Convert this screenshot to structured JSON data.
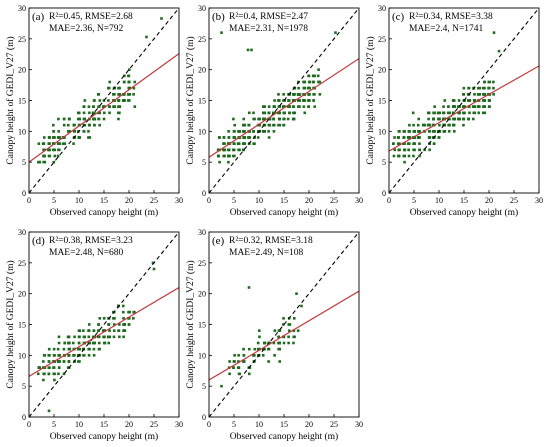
{
  "chart_data": [
    {
      "type": "scatter",
      "panel_label": "(a)",
      "stats_line1": "R²=0.45,  RMSE=2.68",
      "stats_line2": "MAE=2.36,  N=792",
      "xlabel": "Observed canopy height (m)",
      "ylabel": "Canopy height of GEDI_V27 (m)",
      "xlim": [
        0,
        30
      ],
      "ylim": [
        0,
        30
      ],
      "xticks": [
        0,
        5,
        10,
        15,
        20,
        25,
        30
      ],
      "yticks": [
        0,
        5,
        10,
        15,
        20,
        25,
        30
      ],
      "fit_line": [
        [
          0,
          5.0
        ],
        [
          30,
          22.6
        ]
      ],
      "identity_line": [
        [
          0,
          0
        ],
        [
          30,
          30
        ]
      ],
      "cloud": {
        "x_min": 2,
        "x_max": 21,
        "count": 250,
        "slope": 0.59,
        "intercept": 5.0,
        "spread": 2.7
      },
      "outliers": [
        [
          26.5,
          28.3
        ],
        [
          23.5,
          25.3
        ]
      ]
    },
    {
      "type": "scatter",
      "panel_label": "(b)",
      "stats_line1": "R²=0.4,  RMSE=2.47",
      "stats_line2": "MAE=2.31,  N=1978",
      "xlabel": "Observed canopy height (m)",
      "ylabel": "Canopy height of GEDI_V27 (m)",
      "xlim": [
        0,
        30
      ],
      "ylim": [
        0,
        30
      ],
      "xticks": [
        0,
        5,
        10,
        15,
        20,
        25,
        30
      ],
      "yticks": [
        0,
        5,
        10,
        15,
        20,
        25,
        30
      ],
      "fit_line": [
        [
          0,
          5.8
        ],
        [
          30,
          21.8
        ]
      ],
      "identity_line": [
        [
          0,
          0
        ],
        [
          30,
          30
        ]
      ],
      "cloud": {
        "x_min": 2,
        "x_max": 22,
        "count": 380,
        "slope": 0.53,
        "intercept": 5.8,
        "spread": 2.6
      },
      "outliers": [
        [
          7.8,
          23.2
        ],
        [
          8.5,
          23.2
        ],
        [
          25.3,
          26.0
        ],
        [
          2.5,
          26.0
        ]
      ]
    },
    {
      "type": "scatter",
      "panel_label": "(c)",
      "stats_line1": "R²=0.34,  RMSE=3.38",
      "stats_line2": "MAE=2.4,  N=1741",
      "xlabel": "Observed canopy height (m)",
      "ylabel": "Canopy height of GEDI_V27 (m)",
      "xlim": [
        0,
        30
      ],
      "ylim": [
        0,
        30
      ],
      "xticks": [
        0,
        5,
        10,
        15,
        20,
        25,
        30
      ],
      "yticks": [
        0,
        5,
        10,
        15,
        20,
        25,
        30
      ],
      "fit_line": [
        [
          0,
          6.8
        ],
        [
          30,
          20.6
        ]
      ],
      "identity_line": [
        [
          0,
          0
        ],
        [
          30,
          30
        ]
      ],
      "cloud": {
        "x_min": 1,
        "x_max": 21,
        "count": 370,
        "slope": 0.46,
        "intercept": 6.8,
        "spread": 2.8
      },
      "outliers": [
        [
          21.0,
          26.0
        ],
        [
          22.0,
          23.0
        ]
      ]
    },
    {
      "type": "scatter",
      "panel_label": "(d)",
      "stats_line1": "R²=0.38,  RMSE=3.23",
      "stats_line2": "MAE=2.48,  N=680",
      "xlabel": "Observed canopy height (m)",
      "ylabel": "Canopy height of GEDI_V27 (m)",
      "xlim": [
        0,
        30
      ],
      "ylim": [
        0,
        30
      ],
      "xticks": [
        0,
        5,
        10,
        15,
        20,
        25,
        30
      ],
      "yticks": [
        0,
        5,
        10,
        15,
        20,
        25,
        30
      ],
      "fit_line": [
        [
          0,
          6.6
        ],
        [
          30,
          21.0
        ]
      ],
      "identity_line": [
        [
          0,
          0
        ],
        [
          30,
          30
        ]
      ],
      "cloud": {
        "x_min": 2,
        "x_max": 21,
        "count": 230,
        "slope": 0.48,
        "intercept": 6.6,
        "spread": 2.7
      },
      "outliers": [
        [
          24.8,
          25.0
        ],
        [
          25.0,
          24.0
        ],
        [
          4.0,
          1.0
        ]
      ]
    },
    {
      "type": "scatter",
      "panel_label": "(e)",
      "stats_line1": "R²=0.32,  RMSE=3.18",
      "stats_line2": "MAE=2.49,  N=108",
      "xlabel": "Observed canopy height (m)",
      "ylabel": "Canopy height of GEDI_V27 (m)",
      "xlim": [
        0,
        30
      ],
      "ylim": [
        0,
        30
      ],
      "xticks": [
        0,
        5,
        10,
        15,
        20,
        25,
        30
      ],
      "yticks": [
        0,
        5,
        10,
        15,
        20,
        25,
        30
      ],
      "fit_line": [
        [
          0,
          6.0
        ],
        [
          30,
          20.4
        ]
      ],
      "identity_line": [
        [
          0,
          0
        ],
        [
          30,
          30
        ]
      ],
      "cloud": {
        "x_min": 4,
        "x_max": 18,
        "count": 90,
        "slope": 0.48,
        "intercept": 6.0,
        "spread": 2.6
      },
      "outliers": [
        [
          8.0,
          21.0
        ],
        [
          17.5,
          20.0
        ],
        [
          18.5,
          18.0
        ],
        [
          2.5,
          5.0
        ]
      ]
    }
  ],
  "colors": {
    "points": "#1f6b1f",
    "fit_line": "#c0393b",
    "identity_line": "#000000"
  }
}
